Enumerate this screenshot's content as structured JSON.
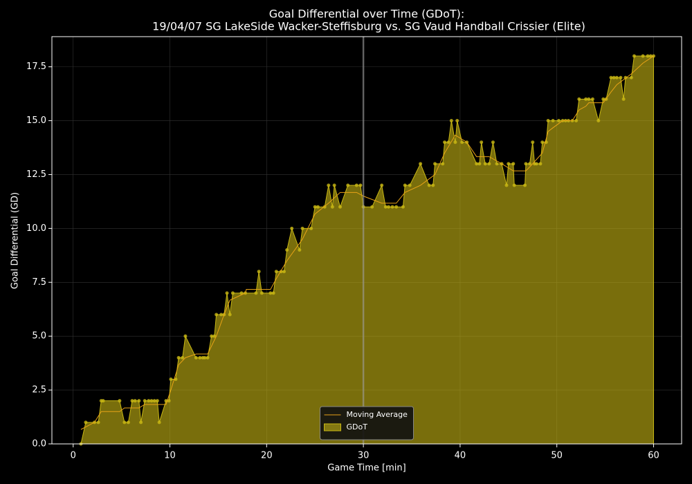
{
  "chart_data": {
    "type": "area",
    "title": "Goal Differential over Time (GDoT):",
    "subtitle": "19/04/07 SG LakeSide Wacker-Steffisburg  vs.  SG Vaud Handball Crissier (Elite)",
    "x_label": "Game Time [min]",
    "y_label": "Goal Differential (GD)",
    "xlim": [
      -2.2,
      62.9
    ],
    "ylim": [
      0,
      18.9
    ],
    "xticks": [
      0,
      10,
      20,
      30,
      40,
      50,
      60
    ],
    "yticks": [
      {
        "value": 0,
        "label": "0.0"
      },
      2.5,
      {
        "value": 5,
        "label": "5.0"
      },
      7.5,
      {
        "value": 10,
        "label": "10.0"
      },
      12.5,
      {
        "value": 15,
        "label": "15.0"
      },
      17.5
    ],
    "grid": true,
    "legend": "lower center",
    "vlines": [
      30
    ],
    "series": [
      {
        "name": "Moving Average",
        "type": "line",
        "color": "#e8a317",
        "x": [
          0.8,
          2.2,
          2.9,
          4.8,
          5.3,
          6.8,
          7.4,
          9.6,
          10.1,
          10.9,
          11.6,
          12.7,
          13.9,
          14.8,
          15.6,
          16.2,
          17.8,
          17.9,
          20.4,
          21.0,
          22.1,
          23.7,
          25.0,
          26.4,
          27.6,
          29.3,
          30.0,
          31.9,
          33.4,
          34.3,
          35.9,
          37.4,
          38.4,
          39.5,
          40.7,
          41.7,
          43.0,
          44.3,
          45.5,
          46.8,
          47.5,
          48.5,
          49.1,
          49.6,
          50.6,
          51.6,
          52.3,
          53.0,
          53.3,
          54.8,
          55.6,
          56.2,
          57.7,
          58.9,
          60.0
        ],
        "values": [
          0.67,
          1.0,
          1.5,
          1.5,
          1.67,
          1.67,
          1.83,
          1.83,
          2.5,
          3.67,
          4.0,
          4.17,
          4.17,
          5.0,
          6.0,
          6.67,
          7.0,
          7.17,
          7.17,
          7.67,
          8.5,
          9.5,
          10.67,
          11.17,
          11.67,
          11.67,
          11.5,
          11.17,
          11.17,
          11.67,
          12.0,
          12.5,
          13.5,
          14.33,
          14.0,
          13.33,
          13.33,
          13.0,
          12.67,
          12.67,
          13.0,
          13.5,
          14.5,
          14.67,
          15.0,
          15.0,
          15.5,
          15.67,
          15.83,
          15.83,
          16.33,
          16.67,
          17.17,
          17.67,
          18.0
        ]
      },
      {
        "name": "GDoT",
        "type": "area",
        "color": "#c9b814",
        "x": [
          0.8,
          1.3,
          2.2,
          2.6,
          2.9,
          3.1,
          4.8,
          5.3,
          5.7,
          6.1,
          6.4,
          6.8,
          7.0,
          7.4,
          7.8,
          8.1,
          8.4,
          8.7,
          8.9,
          9.6,
          9.9,
          10.1,
          10.6,
          10.9,
          11.3,
          11.6,
          12.7,
          13.1,
          13.4,
          13.6,
          13.9,
          14.3,
          14.6,
          14.8,
          15.3,
          15.6,
          15.9,
          16.2,
          16.5,
          17.4,
          17.8,
          18.9,
          19.2,
          19.5,
          20.4,
          20.7,
          21.0,
          21.5,
          21.8,
          22.1,
          22.6,
          23.4,
          23.7,
          24.6,
          25.0,
          25.3,
          26.0,
          26.4,
          26.8,
          27.0,
          27.6,
          28.4,
          29.3,
          29.7,
          30.0,
          30.9,
          31.9,
          32.3,
          32.6,
          33.0,
          33.4,
          34.1,
          34.3,
          34.8,
          35.9,
          36.8,
          37.2,
          37.4,
          38.2,
          38.4,
          38.8,
          39.1,
          39.5,
          39.7,
          40.2,
          40.7,
          41.7,
          42.0,
          42.2,
          42.6,
          43.0,
          43.4,
          43.8,
          44.3,
          44.8,
          45.0,
          45.5,
          45.6,
          46.7,
          46.8,
          47.2,
          47.5,
          47.7,
          47.9,
          48.3,
          48.5,
          48.9,
          49.1,
          49.6,
          50.2,
          50.6,
          50.9,
          51.2,
          51.6,
          52.0,
          52.3,
          53.0,
          53.3,
          53.7,
          54.3,
          54.8,
          55.1,
          55.6,
          55.9,
          56.2,
          56.6,
          56.9,
          57.1,
          57.7,
          58.0,
          58.9,
          59.4,
          59.7,
          60.0
        ],
        "values": [
          0,
          1,
          1,
          1,
          2,
          2,
          2,
          1,
          1,
          2,
          2,
          2,
          1,
          2,
          2,
          2,
          2,
          2,
          1,
          2,
          2,
          3,
          3,
          4,
          4,
          5,
          4,
          4,
          4,
          4,
          4,
          5,
          5,
          6,
          6,
          6,
          7,
          6,
          7,
          7,
          7,
          7,
          8,
          7,
          7,
          7,
          8,
          8,
          8,
          9,
          10,
          9,
          10,
          10,
          11,
          11,
          11,
          12,
          11,
          12,
          11,
          12,
          12,
          12,
          11,
          11,
          12,
          11,
          11,
          11,
          11,
          11,
          12,
          12,
          13,
          12,
          12,
          13,
          13,
          14,
          14,
          15,
          14,
          15,
          14,
          14,
          13,
          13,
          14,
          13,
          13,
          14,
          13,
          13,
          12,
          13,
          13,
          12,
          12,
          13,
          13,
          14,
          13,
          13,
          13,
          14,
          14,
          15,
          15,
          15,
          15,
          15,
          15,
          15,
          15,
          16,
          16,
          16,
          16,
          15,
          16,
          16,
          17,
          17,
          17,
          17,
          16,
          17,
          17,
          18,
          18,
          18,
          18,
          18
        ]
      }
    ]
  }
}
